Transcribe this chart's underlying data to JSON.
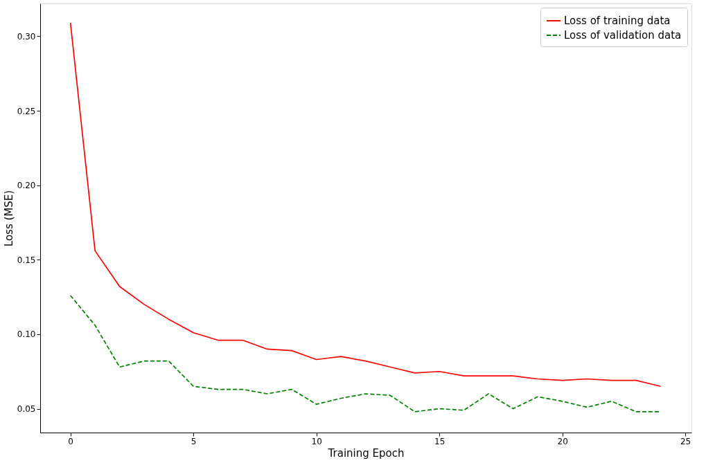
{
  "chart_data": {
    "type": "line",
    "xlabel": "Training Epoch",
    "ylabel": "Loss (MSE)",
    "x": [
      0,
      1,
      2,
      3,
      4,
      5,
      6,
      7,
      8,
      9,
      10,
      11,
      12,
      13,
      14,
      15,
      16,
      17,
      18,
      19,
      20,
      21,
      22,
      23,
      24
    ],
    "series": [
      {
        "name": "Loss of training data",
        "color": "#ff0000",
        "line_style": "solid",
        "values": [
          0.309,
          0.156,
          0.132,
          0.12,
          0.11,
          0.101,
          0.096,
          0.096,
          0.09,
          0.089,
          0.083,
          0.085,
          0.082,
          0.078,
          0.074,
          0.075,
          0.072,
          0.072,
          0.072,
          0.07,
          0.069,
          0.07,
          0.069,
          0.069,
          0.065
        ]
      },
      {
        "name": "Loss of validation data",
        "color": "#008000",
        "line_style": "dashed",
        "values": [
          0.126,
          0.106,
          0.078,
          0.082,
          0.082,
          0.065,
          0.063,
          0.063,
          0.06,
          0.063,
          0.053,
          0.057,
          0.06,
          0.059,
          0.048,
          0.05,
          0.049,
          0.06,
          0.05,
          0.058,
          0.055,
          0.051,
          0.055,
          0.048,
          0.048
        ]
      }
    ],
    "xlim": [
      -1.23,
      25.25
    ],
    "ylim": [
      0.034,
      0.322
    ],
    "xticks": [
      0,
      5,
      10,
      15,
      20,
      25
    ],
    "yticks": [
      0.05,
      {
        "value": 0.1,
        "label": "0.10"
      },
      0.15,
      {
        "value": 0.2,
        "label": "0.20"
      },
      0.25,
      {
        "value": 0.3,
        "label": "0.30"
      }
    ],
    "grid": false,
    "legend": "top right",
    "marker": "none"
  }
}
